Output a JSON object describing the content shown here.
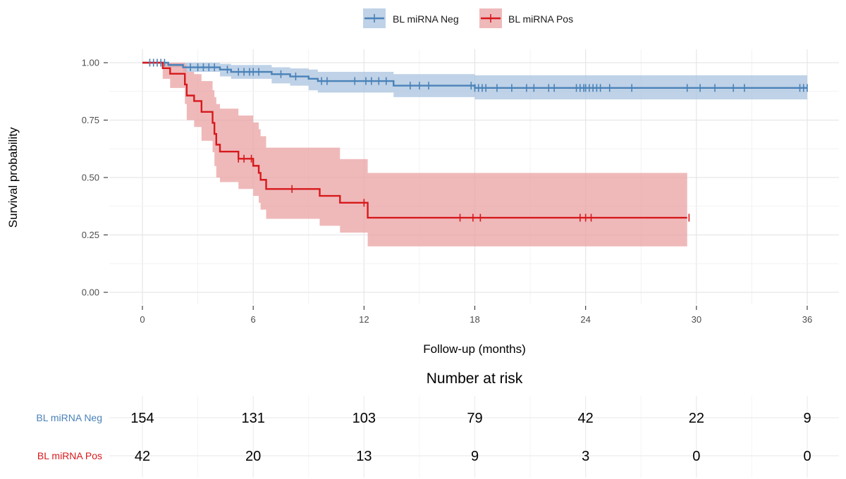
{
  "chart_data": {
    "type": "line",
    "subtype": "kaplan-meier",
    "xlabel": "Follow-up (months)",
    "ylabel": "Survival probability",
    "xlim": [
      0,
      36
    ],
    "ylim": [
      0,
      1
    ],
    "x_ticks": [
      0,
      6,
      12,
      18,
      24,
      30,
      36
    ],
    "x_tick_labels": [
      "0",
      "6",
      "12",
      "18",
      "24",
      "30",
      "36"
    ],
    "y_ticks": [
      0,
      0.25,
      0.5,
      0.75,
      1
    ],
    "y_tick_labels": [
      "0.00",
      "0.25",
      "0.50",
      "0.75",
      "1.00"
    ],
    "grid": true,
    "legend_position": "top",
    "series": [
      {
        "name": "BL miRNA Neg",
        "color": "#4a82b8",
        "band_color": "#a9c3df",
        "steps": [
          [
            0,
            1.0
          ],
          [
            1.4,
            0.99
          ],
          [
            2.2,
            0.98
          ],
          [
            4.2,
            0.97
          ],
          [
            4.8,
            0.96
          ],
          [
            7.0,
            0.95
          ],
          [
            8.0,
            0.94
          ],
          [
            9.0,
            0.93
          ],
          [
            9.5,
            0.92
          ],
          [
            13.6,
            0.9
          ],
          [
            18.0,
            0.89
          ],
          [
            36.0,
            0.89
          ]
        ],
        "lower": [
          [
            0,
            1.0
          ],
          [
            1.4,
            0.98
          ],
          [
            2.2,
            0.96
          ],
          [
            4.2,
            0.94
          ],
          [
            4.8,
            0.93
          ],
          [
            7.0,
            0.91
          ],
          [
            8.0,
            0.9
          ],
          [
            9.0,
            0.88
          ],
          [
            9.5,
            0.87
          ],
          [
            13.6,
            0.85
          ],
          [
            18.0,
            0.84
          ],
          [
            36.0,
            0.84
          ]
        ],
        "upper": [
          [
            0,
            1.0
          ],
          [
            1.4,
            1.0
          ],
          [
            2.2,
            1.0
          ],
          [
            4.2,
            0.995
          ],
          [
            4.8,
            0.99
          ],
          [
            7.0,
            0.98
          ],
          [
            8.0,
            0.975
          ],
          [
            9.0,
            0.97
          ],
          [
            9.5,
            0.96
          ],
          [
            13.6,
            0.95
          ],
          [
            18.0,
            0.945
          ],
          [
            36.0,
            0.945
          ]
        ],
        "censor_times": [
          0.4,
          0.6,
          0.8,
          1.0,
          1.2,
          2.6,
          3.0,
          3.3,
          3.6,
          3.9,
          4.6,
          5.2,
          5.5,
          5.8,
          6.0,
          6.3,
          7.5,
          8.3,
          9.7,
          10.0,
          11.5,
          12.1,
          12.4,
          12.8,
          13.2,
          14.5,
          15.0,
          15.5,
          17.8,
          18.0,
          18.2,
          18.4,
          18.6,
          19.2,
          20.0,
          20.8,
          21.2,
          22.0,
          22.3,
          23.5,
          23.7,
          23.9,
          24.0,
          24.2,
          24.4,
          24.6,
          24.8,
          25.3,
          26.5,
          29.5,
          30.2,
          31.0,
          32.0,
          32.6,
          35.6,
          35.8,
          36.0
        ]
      },
      {
        "name": "BL miRNA Pos",
        "color": "#d7191c",
        "band_color": "#eaa2a3",
        "steps": [
          [
            0,
            1.0
          ],
          [
            1.1,
            0.976
          ],
          [
            1.5,
            0.952
          ],
          [
            2.3,
            0.905
          ],
          [
            2.4,
            0.857
          ],
          [
            2.8,
            0.833
          ],
          [
            3.2,
            0.786
          ],
          [
            3.8,
            0.738
          ],
          [
            3.9,
            0.69
          ],
          [
            4.0,
            0.643
          ],
          [
            4.2,
            0.613
          ],
          [
            5.2,
            0.582
          ],
          [
            6.0,
            0.551
          ],
          [
            6.3,
            0.52
          ],
          [
            6.4,
            0.49
          ],
          [
            6.7,
            0.45
          ],
          [
            9.6,
            0.42
          ],
          [
            10.7,
            0.39
          ],
          [
            12.2,
            0.325
          ],
          [
            29.5,
            0.325
          ]
        ],
        "lower": [
          [
            0,
            1.0
          ],
          [
            1.1,
            0.93
          ],
          [
            1.5,
            0.89
          ],
          [
            2.3,
            0.82
          ],
          [
            2.4,
            0.75
          ],
          [
            2.8,
            0.72
          ],
          [
            3.2,
            0.66
          ],
          [
            3.8,
            0.61
          ],
          [
            3.9,
            0.55
          ],
          [
            4.0,
            0.5
          ],
          [
            4.2,
            0.48
          ],
          [
            5.2,
            0.45
          ],
          [
            6.0,
            0.42
          ],
          [
            6.3,
            0.39
          ],
          [
            6.4,
            0.36
          ],
          [
            6.7,
            0.32
          ],
          [
            9.6,
            0.29
          ],
          [
            10.7,
            0.26
          ],
          [
            12.2,
            0.2
          ],
          [
            29.5,
            0.2
          ]
        ],
        "upper": [
          [
            0,
            1.0
          ],
          [
            1.1,
            1.0
          ],
          [
            1.5,
            1.0
          ],
          [
            2.3,
            0.99
          ],
          [
            2.4,
            0.96
          ],
          [
            2.8,
            0.95
          ],
          [
            3.2,
            0.92
          ],
          [
            3.8,
            0.88
          ],
          [
            3.9,
            0.85
          ],
          [
            4.0,
            0.82
          ],
          [
            4.2,
            0.8
          ],
          [
            5.2,
            0.77
          ],
          [
            6.0,
            0.74
          ],
          [
            6.3,
            0.71
          ],
          [
            6.4,
            0.68
          ],
          [
            6.7,
            0.63
          ],
          [
            9.6,
            0.63
          ],
          [
            10.7,
            0.58
          ],
          [
            12.2,
            0.52
          ],
          [
            29.5,
            0.52
          ]
        ],
        "censor_times": [
          5.2,
          5.5,
          5.9,
          8.1,
          12.0,
          17.2,
          17.9,
          18.3,
          23.7,
          24.0,
          24.3,
          29.6
        ]
      }
    ],
    "risk_table": {
      "title": "Number at risk",
      "times": [
        0,
        6,
        12,
        18,
        24,
        30,
        36
      ],
      "rows": [
        {
          "label": "BL miRNA Neg",
          "color": "#4a82b8",
          "values": [
            "154",
            "131",
            "103",
            "79",
            "42",
            "22",
            "9"
          ]
        },
        {
          "label": "BL miRNA Pos",
          "color": "#d7191c",
          "values": [
            "42",
            "20",
            "13",
            "9",
            "3",
            "0",
            "0"
          ]
        }
      ]
    }
  }
}
